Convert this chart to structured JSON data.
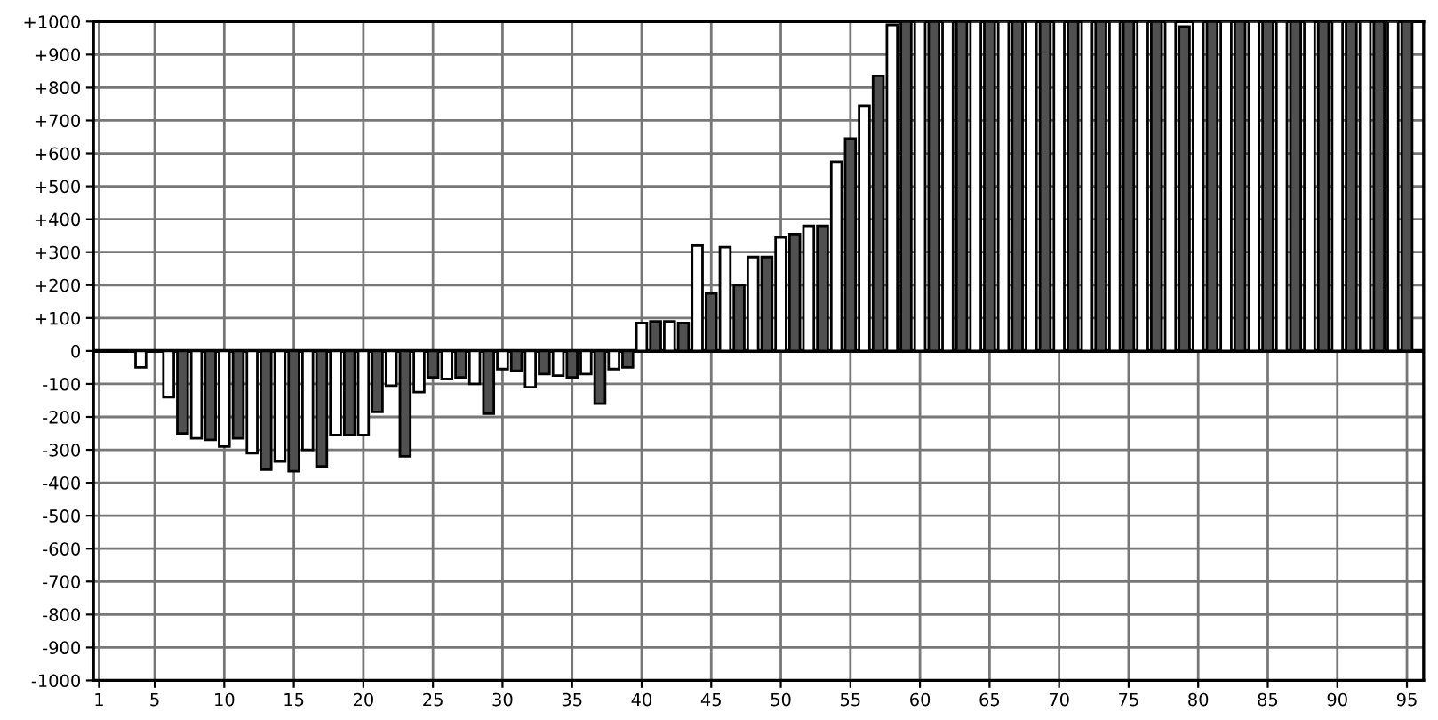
{
  "chart_data": {
    "type": "bar",
    "x": [
      4,
      6,
      8,
      10,
      12,
      14,
      16,
      18,
      20,
      22,
      24,
      26,
      28,
      30,
      32,
      34,
      36,
      38,
      40,
      42,
      44,
      46,
      48,
      50,
      52,
      54,
      56,
      58,
      60,
      62,
      64,
      66,
      68,
      70,
      72,
      74,
      76,
      78,
      80,
      82,
      84,
      86,
      88,
      90,
      92,
      94
    ],
    "series": [
      {
        "color": "#ffffff",
        "values": [
          -50,
          -140,
          -265,
          -290,
          -310,
          -335,
          -300,
          -255,
          -255,
          -105,
          -125,
          -85,
          -100,
          -55,
          -110,
          -75,
          -70,
          -55,
          85,
          90,
          320,
          315,
          285,
          345,
          380,
          575,
          745,
          990,
          1000,
          1000,
          1000,
          1000,
          1000,
          1000,
          1000,
          1000,
          1000,
          1000,
          1000,
          1000,
          1000,
          1000,
          1000,
          1000,
          1000,
          1000
        ]
      },
      {
        "color": "#505050",
        "x": [
          7,
          9,
          11,
          13,
          15,
          17,
          19,
          21,
          23,
          25,
          27,
          29,
          31,
          33,
          35,
          37,
          39,
          41,
          43,
          45,
          47,
          49,
          51,
          53,
          55,
          57,
          59,
          61,
          63,
          65,
          67,
          69,
          71,
          73,
          75,
          77,
          79,
          81,
          83,
          85,
          87,
          89,
          91,
          93,
          95
        ],
        "values": [
          -250,
          -270,
          -265,
          -360,
          -365,
          -350,
          -255,
          -185,
          -320,
          -80,
          -80,
          -190,
          -60,
          -70,
          -80,
          -160,
          -50,
          90,
          85,
          175,
          200,
          285,
          355,
          380,
          645,
          835,
          1000,
          1000,
          1000,
          1000,
          1000,
          1000,
          1000,
          1000,
          1000,
          1000,
          985,
          1000,
          1000,
          1000,
          1000,
          1000,
          1000,
          1000,
          1000
        ]
      }
    ],
    "xlim": [
      0.6,
      96.2
    ],
    "xticks": [
      1,
      5,
      10,
      15,
      20,
      25,
      30,
      35,
      40,
      45,
      50,
      55,
      60,
      65,
      70,
      75,
      80,
      85,
      90,
      95
    ],
    "ylim": [
      -1000,
      1000
    ],
    "yticks": [
      {
        "value": 1000,
        "label": "+1000"
      },
      {
        "value": 900,
        "label": "+900"
      },
      {
        "value": 800,
        "label": "+800"
      },
      {
        "value": 700,
        "label": "+700"
      },
      {
        "value": 600,
        "label": "+600"
      },
      {
        "value": 500,
        "label": "+500"
      },
      {
        "value": 400,
        "label": "+400"
      },
      {
        "value": 300,
        "label": "+300"
      },
      {
        "value": 200,
        "label": "+200"
      },
      {
        "value": 100,
        "label": "+100"
      },
      0,
      {
        "value": -100,
        "label": "-100"
      },
      {
        "value": -200,
        "label": "-200"
      },
      {
        "value": -300,
        "label": "-300"
      },
      {
        "value": -400,
        "label": "-400"
      },
      {
        "value": -500,
        "label": "-500"
      },
      {
        "value": -600,
        "label": "-600"
      },
      {
        "value": -700,
        "label": "-700"
      },
      {
        "value": -800,
        "label": "-800"
      },
      {
        "value": -900,
        "label": "-900"
      },
      {
        "value": -1000,
        "label": "-1000"
      }
    ],
    "grid": true
  }
}
